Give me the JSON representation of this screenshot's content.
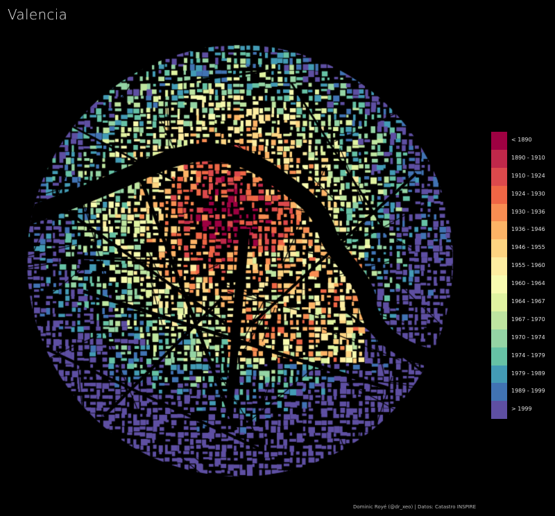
{
  "title": "Valencia",
  "caption": "Dominic Royé (@dr_xeo) | Datos: Catastro INSPIRE",
  "legend": {
    "items": [
      {
        "label": "< 1890",
        "color": "#9e0142"
      },
      {
        "label": "1890 - 1910",
        "color": "#c0284a"
      },
      {
        "label": "1910 - 1924",
        "color": "#dc494c"
      },
      {
        "label": "1924 - 1930",
        "color": "#ef6645"
      },
      {
        "label": "1930 - 1936",
        "color": "#f88d52"
      },
      {
        "label": "1936 - 1946",
        "color": "#fdb466"
      },
      {
        "label": "1946 - 1955",
        "color": "#fed481"
      },
      {
        "label": "1955 - 1960",
        "color": "#feeda1"
      },
      {
        "label": "1960 - 1964",
        "color": "#f8fbb0"
      },
      {
        "label": "1964 - 1967",
        "color": "#e0f3a1"
      },
      {
        "label": "1967 - 1970",
        "color": "#bee5a0"
      },
      {
        "label": "1970 - 1974",
        "color": "#94d4a4"
      },
      {
        "label": "1974 - 1979",
        "color": "#66c2a5"
      },
      {
        "label": "1979 - 1989",
        "color": "#439bb5"
      },
      {
        "label": "1989 - 1999",
        "color": "#4173b3"
      },
      {
        "label": "> 1999",
        "color": "#5e4fa2"
      }
    ]
  },
  "map": {
    "background_color": "#000000",
    "street_color": "#000000",
    "river_color": "#000000"
  }
}
